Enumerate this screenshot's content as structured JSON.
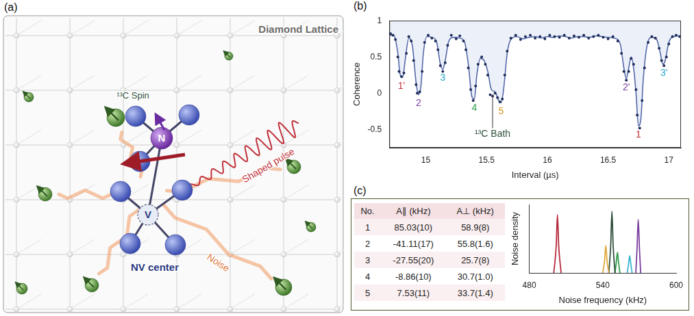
{
  "panel_labels": [
    "(a)",
    "(b)",
    "(c)"
  ],
  "diagram": {
    "title": "Diamond Lattice",
    "spin_label": "¹³C Spin",
    "pulse_label": "Shaped pulse",
    "center_label": "NV center",
    "nitrogen": "N",
    "vacancy": "V",
    "noise_label": "Noise"
  },
  "table": {
    "columns": [
      "No.",
      "A∥ (kHz)",
      "A⊥ (kHz)"
    ],
    "rows": [
      [
        "1",
        "85.03(10)",
        "58.9(8)"
      ],
      [
        "2",
        "-41.11(17)",
        "55.8(1.6)"
      ],
      [
        "3",
        "-27.55(20)",
        "25.7(8)"
      ],
      [
        "4",
        "-8.86(10)",
        "30.7(1.0)"
      ],
      [
        "5",
        "7.53(11)",
        "33.7(1.4)"
      ]
    ]
  },
  "chart_data": [
    {
      "type": "scatter",
      "x_label": "Interval (µs)",
      "y_label": "Coherence",
      "xlim": [
        14.7,
        17.1
      ],
      "xticks": [
        15,
        15.5,
        16,
        16.5,
        17
      ],
      "ylim": [
        -0.75,
        1
      ],
      "yticks": [
        -0.5,
        0,
        0.5,
        1
      ],
      "grid": false,
      "series": [
        {
          "type": "scatter",
          "marker": "circle",
          "color": "#1f2d5a",
          "x": [
            14.71,
            14.73,
            14.75,
            14.77,
            14.78,
            14.8,
            14.82,
            14.84,
            14.86,
            14.88,
            14.9,
            14.92,
            14.93,
            14.95,
            14.97,
            14.99,
            15.02,
            15.05,
            15.08,
            15.1,
            15.12,
            15.14,
            15.16,
            15.18,
            15.21,
            15.25,
            15.28,
            15.31,
            15.33,
            15.35,
            15.37,
            15.39,
            15.41,
            15.43,
            15.46,
            15.49,
            15.51,
            15.53,
            15.55,
            15.57,
            15.59,
            15.61,
            15.63,
            15.65,
            15.67,
            15.7,
            15.74,
            15.78,
            15.82,
            15.86,
            15.9,
            15.94,
            15.98,
            16.02,
            16.06,
            16.1,
            16.14,
            16.18,
            16.22,
            16.26,
            16.3,
            16.34,
            16.38,
            16.42,
            16.46,
            16.5,
            16.54,
            16.58,
            16.61,
            16.63,
            16.65,
            16.67,
            16.69,
            16.71,
            16.73,
            16.74,
            16.76,
            16.78,
            16.8,
            16.83,
            16.86,
            16.89,
            16.92,
            16.94,
            16.96,
            16.98,
            17.0,
            17.03,
            17.06,
            17.09
          ],
          "values": [
            0.82,
            0.8,
            0.74,
            0.5,
            0.3,
            0.23,
            0.28,
            0.55,
            0.78,
            0.72,
            0.45,
            0.12,
            0.0,
            0.02,
            0.3,
            0.7,
            0.8,
            0.76,
            0.72,
            0.6,
            0.38,
            0.3,
            0.42,
            0.66,
            0.8,
            0.75,
            0.79,
            0.72,
            0.6,
            0.35,
            0.05,
            -0.1,
            0.1,
            0.4,
            0.5,
            0.4,
            0.25,
            -0.02,
            -0.04,
            0.0,
            -0.06,
            -0.12,
            -0.08,
            0.25,
            0.58,
            0.76,
            0.8,
            0.74,
            0.78,
            0.8,
            0.76,
            0.78,
            0.75,
            0.8,
            0.78,
            0.77,
            0.8,
            0.76,
            0.79,
            0.77,
            0.8,
            0.76,
            0.78,
            0.8,
            0.77,
            0.75,
            0.78,
            0.72,
            0.55,
            0.3,
            0.18,
            0.3,
            0.48,
            0.4,
            0.05,
            -0.3,
            -0.48,
            -0.1,
            0.35,
            0.7,
            0.78,
            0.76,
            0.62,
            0.45,
            0.38,
            0.5,
            0.68,
            0.78,
            0.8,
            0.78
          ]
        },
        {
          "type": "line",
          "line_style": "solid",
          "color": "#5468a8",
          "x": [
            14.7,
            14.74,
            14.77,
            14.79,
            14.81,
            14.83,
            14.86,
            14.89,
            14.92,
            14.94,
            14.96,
            14.98,
            15.01,
            15.05,
            15.09,
            15.12,
            15.14,
            15.16,
            15.19,
            15.23,
            15.28,
            15.32,
            15.35,
            15.38,
            15.4,
            15.42,
            15.45,
            15.48,
            15.51,
            15.54,
            15.57,
            15.6,
            15.62,
            15.64,
            15.67,
            15.7,
            15.75,
            15.8,
            15.85,
            15.9,
            15.95,
            16.0,
            16.05,
            16.1,
            16.15,
            16.2,
            16.25,
            16.3,
            16.35,
            16.4,
            16.45,
            16.5,
            16.55,
            16.6,
            16.63,
            16.65,
            16.67,
            16.69,
            16.71,
            16.73,
            16.75,
            16.77,
            16.79,
            16.82,
            16.86,
            16.9,
            16.93,
            16.95,
            16.97,
            17.0,
            17.04,
            17.1
          ],
          "values": [
            0.8,
            0.79,
            0.55,
            0.25,
            0.22,
            0.45,
            0.76,
            0.65,
            0.15,
            -0.02,
            0.1,
            0.55,
            0.78,
            0.77,
            0.7,
            0.4,
            0.33,
            0.45,
            0.72,
            0.77,
            0.76,
            0.7,
            0.4,
            -0.05,
            -0.08,
            0.25,
            0.48,
            0.45,
            0.3,
            0.05,
            0.02,
            -0.1,
            -0.13,
            0.05,
            0.55,
            0.74,
            0.78,
            0.75,
            0.77,
            0.78,
            0.76,
            0.78,
            0.77,
            0.79,
            0.78,
            0.76,
            0.78,
            0.78,
            0.77,
            0.79,
            0.78,
            0.77,
            0.76,
            0.68,
            0.35,
            0.2,
            0.35,
            0.5,
            0.35,
            0.0,
            -0.45,
            -0.35,
            0.2,
            0.65,
            0.77,
            0.74,
            0.55,
            0.4,
            0.45,
            0.7,
            0.78,
            0.79
          ]
        }
      ],
      "annotations": [
        {
          "text": "1'",
          "x": 14.8,
          "color": "#c0303a"
        },
        {
          "text": "2",
          "x": 14.94,
          "color": "#7b3f9e"
        },
        {
          "text": "3",
          "x": 15.14,
          "color": "#2aa6c9"
        },
        {
          "text": "4",
          "x": 15.4,
          "color": "#2e9e4a"
        },
        {
          "text": "¹³C Bath",
          "x": 15.55,
          "color": "#2f4f3a"
        },
        {
          "text": "5",
          "x": 15.62,
          "color": "#d99a1e"
        },
        {
          "text": "2'",
          "x": 16.65,
          "color": "#7b3f9e"
        },
        {
          "text": "1",
          "x": 16.75,
          "color": "#c0303a"
        },
        {
          "text": "3'",
          "x": 16.96,
          "color": "#2aa6c9"
        }
      ]
    },
    {
      "type": "line",
      "x_label": "Noise frequency (kHz)",
      "y_label": "Noise density",
      "xlim": [
        480,
        600
      ],
      "xticks": [
        480,
        540,
        600
      ],
      "ylim": [
        0,
        1
      ],
      "tick_labels": "x",
      "grid": false,
      "series": [
        {
          "color": "#b5283a",
          "x": [
            500,
            502,
            503,
            504,
            506
          ],
          "values": [
            0,
            0.4,
            0.85,
            0.4,
            0
          ]
        },
        {
          "color": "#e0a93a",
          "x": [
            540,
            541.5,
            542.5,
            543.5,
            545
          ],
          "values": [
            0,
            0.18,
            0.4,
            0.18,
            0
          ]
        },
        {
          "color": "#2f4f3a",
          "x": [
            545,
            546.5,
            547.5,
            548.5,
            550
          ],
          "values": [
            0,
            0.4,
            0.9,
            0.4,
            0
          ]
        },
        {
          "color": "#2e9e4a",
          "x": [
            550,
            551,
            552,
            553,
            554
          ],
          "values": [
            0,
            0.14,
            0.3,
            0.14,
            0
          ]
        },
        {
          "color": "#3bb3d0",
          "x": [
            560,
            561,
            562,
            563,
            564
          ],
          "values": [
            0,
            0.12,
            0.25,
            0.12,
            0
          ]
        },
        {
          "color": "#7b3f9e",
          "x": [
            567,
            568,
            569,
            570,
            571
          ],
          "values": [
            0,
            0.35,
            0.78,
            0.35,
            0
          ]
        }
      ]
    }
  ]
}
